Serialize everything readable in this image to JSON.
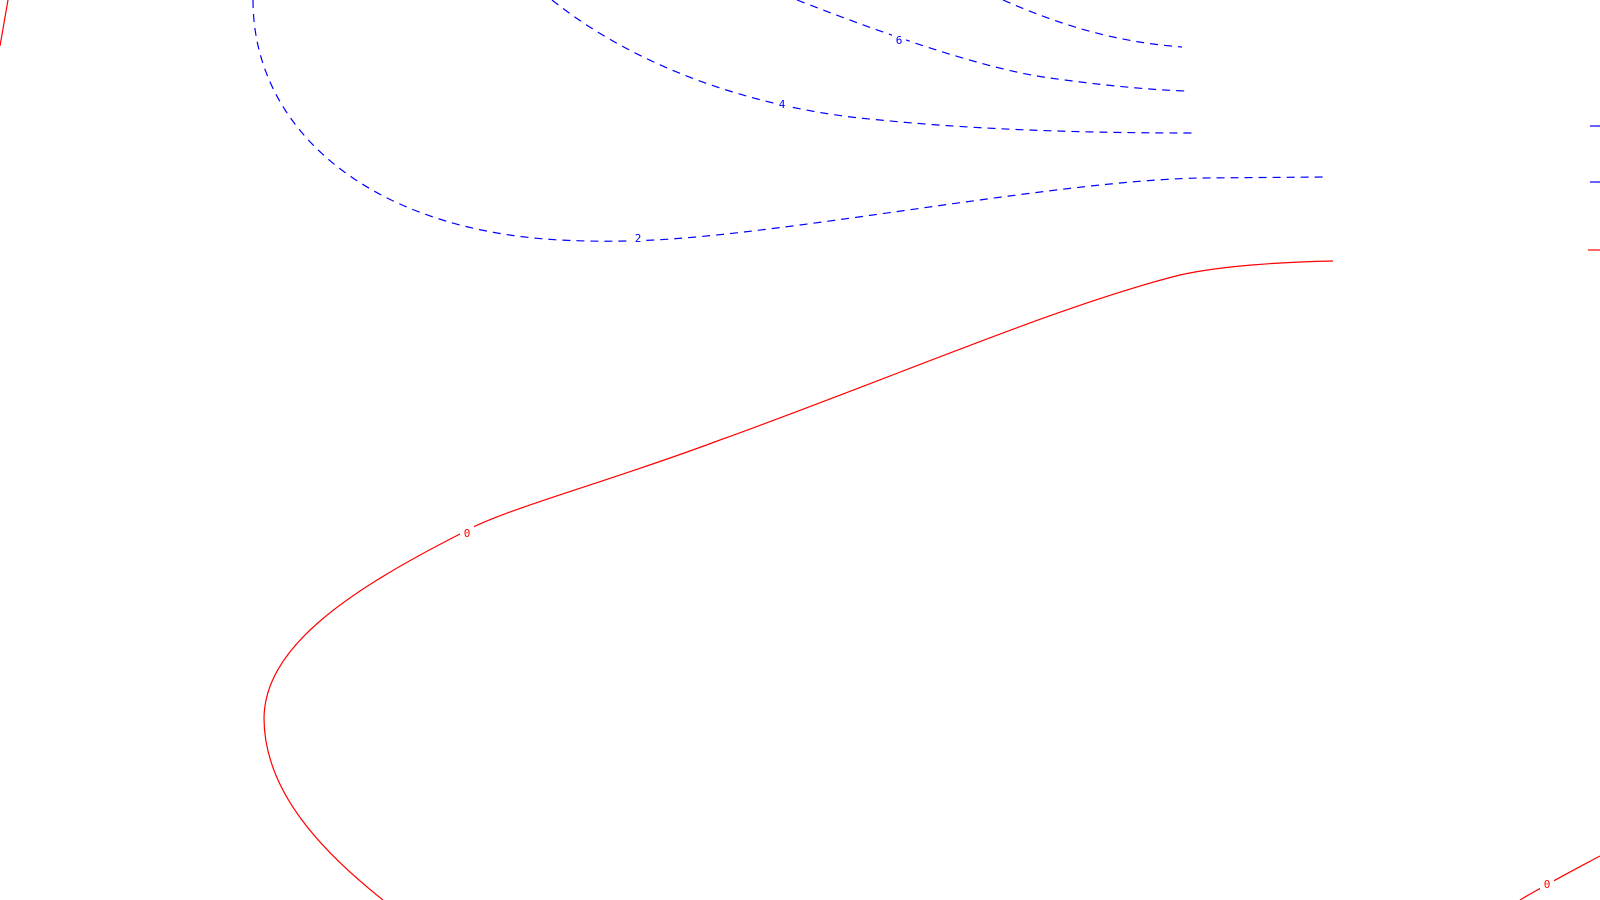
{
  "chart_data": {
    "type": "contour",
    "title": "",
    "xlabel": "",
    "ylabel": "",
    "grid": false,
    "legend": "none",
    "colors": {
      "positive": "#0000ff",
      "zero": "#ff0000",
      "background": "#ffffff"
    },
    "contours": [
      {
        "id": "contour-6",
        "level": 6,
        "label": "6",
        "style": "dashed",
        "color": "#0000ff"
      },
      {
        "id": "contour-4",
        "level": 4,
        "label": "4",
        "style": "dashed",
        "color": "#0000ff"
      },
      {
        "id": "contour-2",
        "level": 2,
        "label": "2",
        "style": "dashed",
        "color": "#0000ff"
      },
      {
        "id": "contour-0-main",
        "level": 0,
        "label": "0",
        "style": "solid",
        "color": "#ff0000"
      },
      {
        "id": "contour-0-corner",
        "level": 0,
        "label": "0",
        "style": "solid",
        "color": "#ff0000"
      }
    ]
  }
}
